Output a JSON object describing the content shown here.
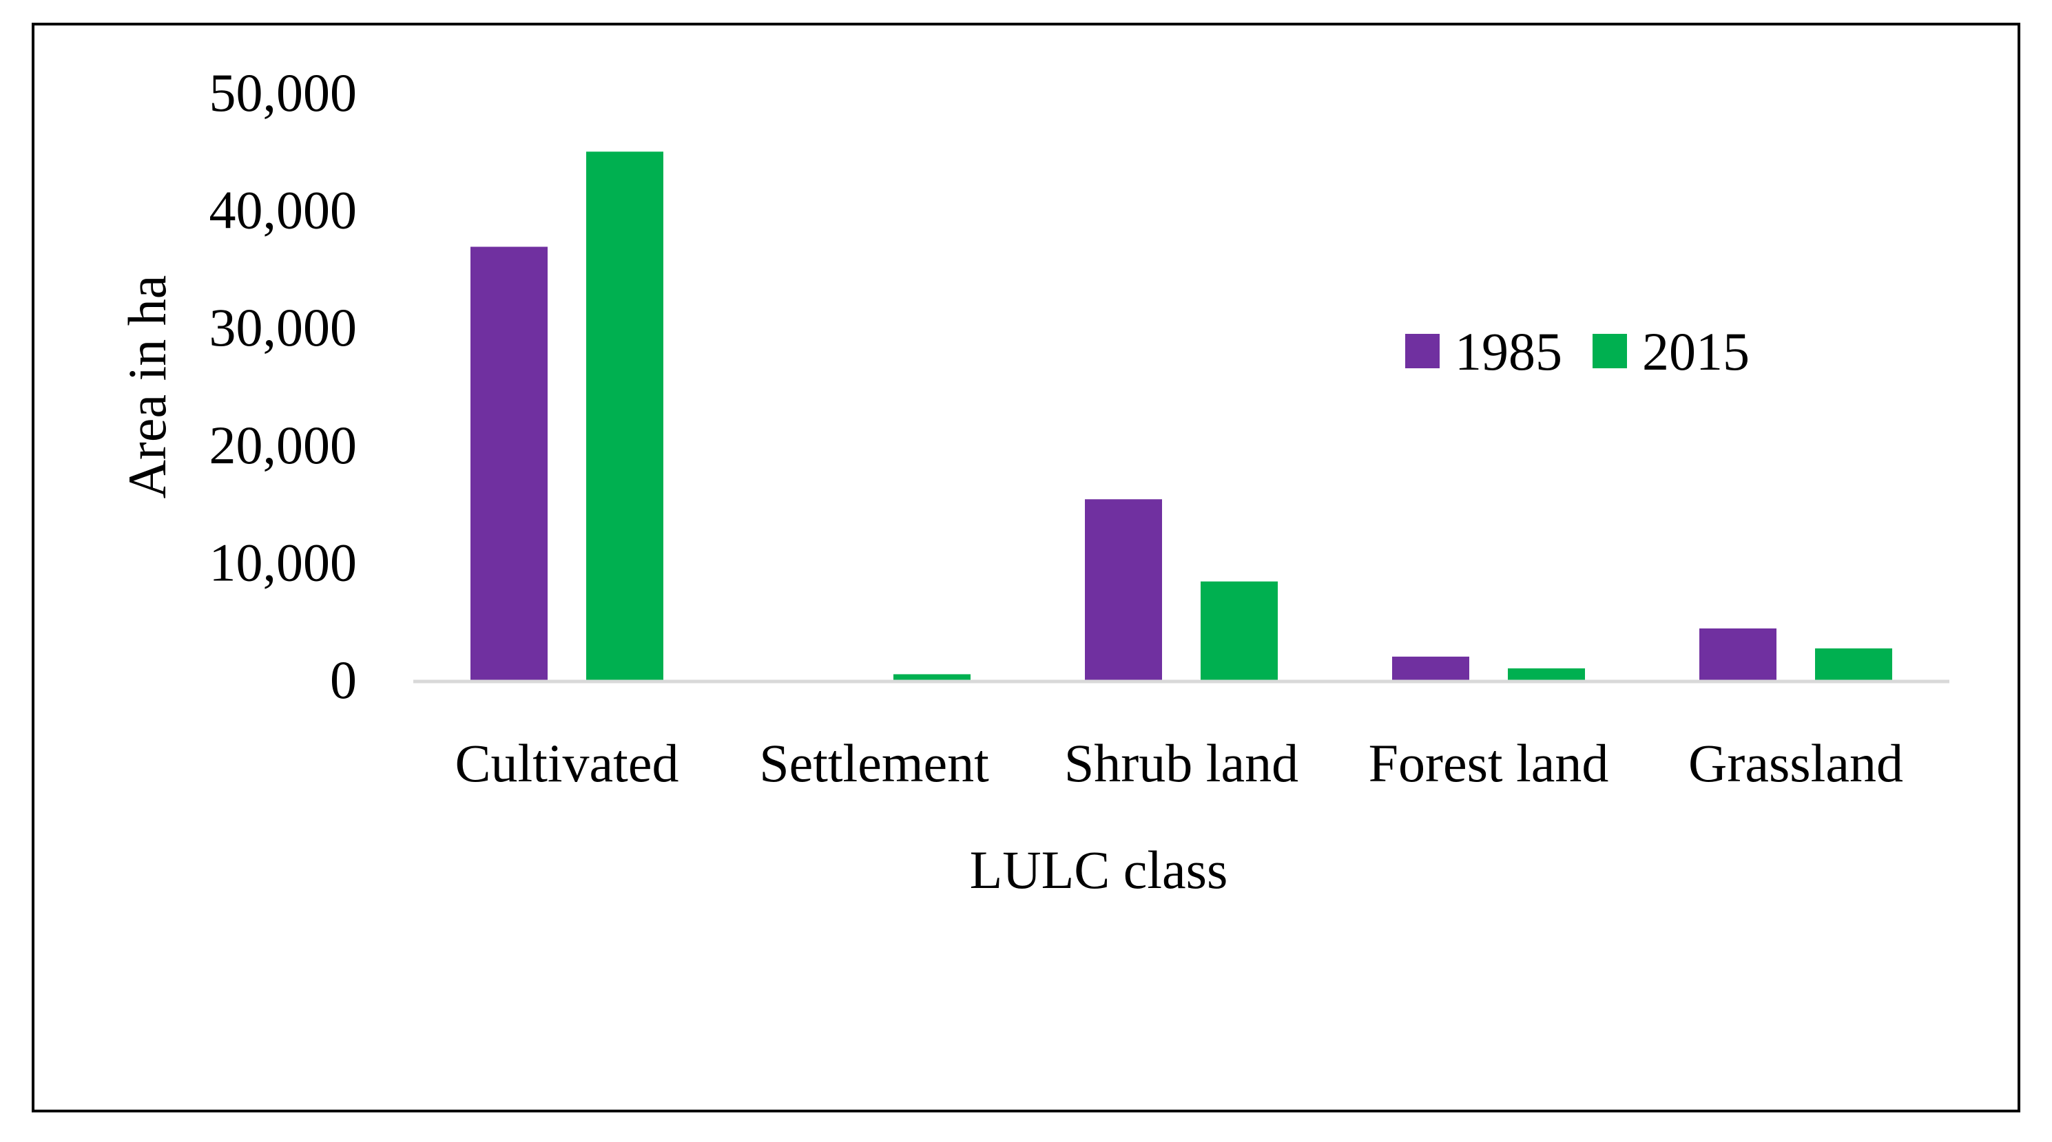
{
  "chart_data": {
    "type": "bar",
    "categories": [
      "Cultivated",
      "Settlement",
      "Shrub land",
      "Forest land",
      "Grassland"
    ],
    "series": [
      {
        "name": "1985",
        "color": "#7030a0",
        "values": [
          36900,
          0,
          15400,
          2000,
          4400
        ]
      },
      {
        "name": "2015",
        "color": "#00b050",
        "values": [
          45000,
          500,
          8400,
          1000,
          2700
        ]
      }
    ],
    "xlabel": "LULC class",
    "ylabel": "Area in ha",
    "ylim": [
      0,
      50000
    ],
    "yticks": [
      0,
      10000,
      20000,
      30000,
      40000,
      50000
    ],
    "ytick_labels": [
      "0",
      "10,000",
      "20,000",
      "30,000",
      "40,000",
      "50,000"
    ],
    "grid": false,
    "legend_position": "upper-right, inside plot area",
    "axis_color": "#d9d9d9"
  }
}
